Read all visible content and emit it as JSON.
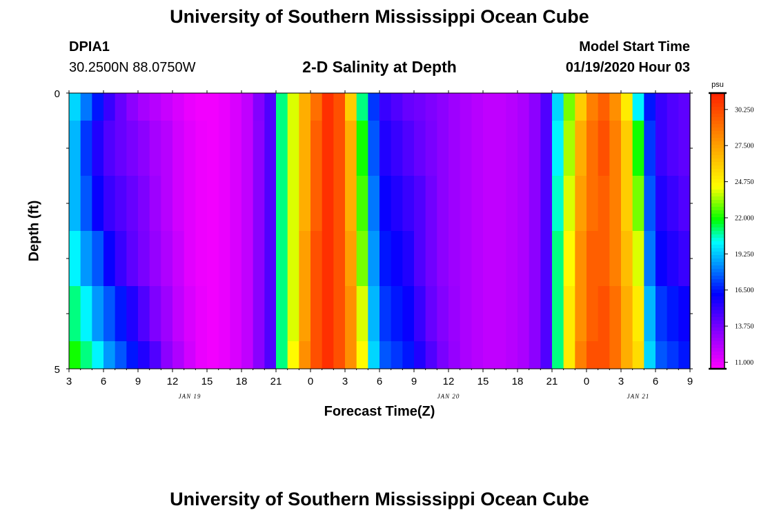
{
  "page": {
    "title_top": "University of Southern Mississippi Ocean Cube",
    "title_bottom": "University of Southern Mississippi Ocean Cube",
    "station": "DPIA1",
    "coords": "30.2500N 88.0750W",
    "model_label": "Model Start Time",
    "model_time": "01/19/2020 Hour 03"
  },
  "chart_data": {
    "type": "heatmap",
    "title": "2-D Salinity at Depth",
    "xlabel": "Forecast Time(Z)",
    "ylabel": "Depth (ft)",
    "x_tick_labels": [
      "3",
      "6",
      "9",
      "12",
      "15",
      "18",
      "21",
      "0",
      "3",
      "6",
      "9",
      "12",
      "15",
      "18",
      "21",
      "0",
      "3",
      "6",
      "9"
    ],
    "date_labels": [
      "JAN 19",
      "JAN 20",
      "JAN 21"
    ],
    "y_tick_labels": [
      "0",
      "5"
    ],
    "ylim": [
      0,
      5
    ],
    "hours": 54,
    "colorbar": {
      "unit": "psu",
      "min": 10.5,
      "max": 31.5,
      "ticks": [
        "30.250",
        "27.500",
        "24.750",
        "22.000",
        "19.250",
        "16.500",
        "13.750",
        "11.000"
      ],
      "tick_values": [
        30.25,
        27.5,
        24.75,
        22.0,
        19.25,
        16.5,
        13.75,
        11.0
      ]
    },
    "depth_rows": [
      {
        "depth": "0.0",
        "values": [
          19.5,
          18,
          16.5,
          15,
          14,
          13.2,
          12.6,
          12.2,
          11.8,
          11.4,
          11,
          10.8,
          10.8,
          11,
          11.4,
          12,
          13.4,
          14.5,
          21,
          24,
          27,
          29,
          31,
          30,
          26,
          21,
          17,
          15,
          14.5,
          14,
          13.8,
          13.5,
          13.2,
          12.8,
          12.5,
          12.2,
          12,
          12,
          12.2,
          12.5,
          13.2,
          14.5,
          19.5,
          23,
          26,
          28.5,
          29.5,
          28,
          25,
          20,
          16.5,
          15,
          14.5,
          14.2
        ]
      },
      {
        "depth": "0.5",
        "values": [
          19,
          17,
          15.5,
          14.5,
          14,
          13.6,
          13.2,
          12.6,
          12.2,
          11.6,
          11.2,
          10.9,
          10.8,
          11,
          11.4,
          12,
          13.3,
          14.5,
          21,
          24,
          27,
          29.5,
          31,
          30,
          27,
          22,
          17.5,
          15.5,
          15,
          14.5,
          14,
          13.6,
          13.2,
          12.8,
          12.5,
          12.2,
          12,
          12,
          12.2,
          12.5,
          13.2,
          14.5,
          20,
          23.5,
          27,
          29,
          30,
          28.5,
          26,
          22,
          17,
          15,
          14.5,
          14.2
        ]
      },
      {
        "depth": "1.5",
        "values": [
          19,
          17.5,
          16,
          15,
          14.5,
          14,
          13.5,
          12.8,
          12.2,
          11.6,
          11.2,
          10.9,
          10.8,
          11,
          11.4,
          12,
          13.3,
          14.5,
          21,
          24,
          27,
          29.5,
          31,
          30,
          27,
          22.5,
          18,
          16,
          15.5,
          15,
          14.5,
          13.8,
          13.2,
          12.8,
          12.5,
          12.2,
          12,
          12,
          12.2,
          12.5,
          13.2,
          14.5,
          20.5,
          24,
          27.5,
          29,
          29.5,
          28.5,
          26,
          23,
          17.5,
          15.5,
          15,
          14.5
        ]
      },
      {
        "depth": "2.5",
        "values": [
          20,
          18.5,
          17.5,
          16,
          15,
          14.2,
          13.6,
          13,
          12.4,
          11.8,
          11.2,
          10.9,
          10.8,
          11,
          11.4,
          12,
          13.3,
          14.5,
          21,
          24,
          27.5,
          30,
          31,
          30,
          27.5,
          23,
          18.5,
          16.5,
          16,
          15.5,
          14.5,
          13.8,
          13.2,
          12.8,
          12.5,
          12.2,
          12,
          12,
          12.2,
          12.5,
          13.2,
          14.5,
          21,
          24.5,
          28,
          29.5,
          29.5,
          28.5,
          26.5,
          24,
          18,
          16,
          15.5,
          15
        ]
      },
      {
        "depth": "3.5",
        "values": [
          21,
          20,
          18.5,
          17.5,
          16.5,
          15.5,
          14.5,
          13.5,
          12.8,
          12,
          11.4,
          11,
          10.8,
          11,
          11.4,
          12,
          13.3,
          14.5,
          21,
          24,
          27.5,
          30,
          31,
          30,
          28,
          24,
          19,
          17,
          16.5,
          16,
          15,
          14,
          13.4,
          12.9,
          12.5,
          12.2,
          12,
          12,
          12.2,
          12.5,
          13.2,
          14.5,
          21,
          25,
          28,
          29.5,
          30,
          29,
          27,
          25,
          19,
          17,
          16.5,
          16
        ]
      },
      {
        "depth": "4.5",
        "values": [
          22,
          21,
          20,
          18.5,
          17.5,
          16.5,
          15.5,
          14.5,
          13.2,
          12.4,
          11.6,
          11,
          10.8,
          11,
          11.4,
          12,
          13.3,
          14.5,
          21,
          24.5,
          28,
          30,
          31,
          30,
          28,
          24.5,
          19.5,
          17.5,
          17,
          16.5,
          15.5,
          14.5,
          13.6,
          13,
          12.5,
          12.2,
          12,
          12,
          12.2,
          12.5,
          13.2,
          14.5,
          21,
          25,
          28.5,
          30,
          30,
          29,
          27,
          25.5,
          19.5,
          17.5,
          17,
          16.5
        ]
      }
    ]
  }
}
